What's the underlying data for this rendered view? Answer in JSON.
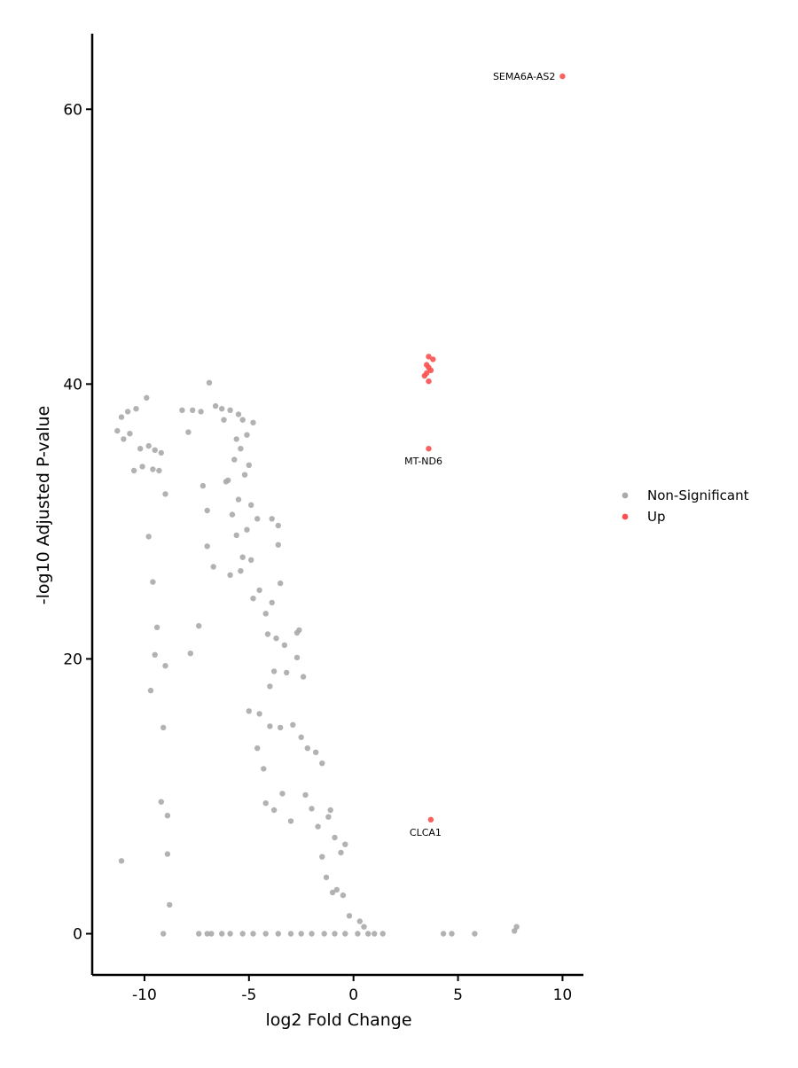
{
  "chart_data": {
    "type": "scatter",
    "title": "",
    "xlabel": "log2 Fold Change",
    "ylabel": "-log10 Adjusted P-value",
    "xlim": [
      -12.5,
      11
    ],
    "ylim": [
      -3,
      65.5
    ],
    "xticks": [
      -10,
      -5,
      0,
      5,
      10
    ],
    "yticks": [
      0,
      20,
      40,
      60
    ],
    "grid": false,
    "legend_position": "right",
    "colors": {
      "Non-Significant": "#aaaaaa",
      "Up": "#f8514f"
    },
    "series": [
      {
        "name": "Non-Significant",
        "points_description": "approx. 3000 genes, log2FC between -11.5 and 8, -log10 adj p between 0 and 40",
        "points": [
          [
            -11.3,
            36.6
          ],
          [
            -11.1,
            37.6
          ],
          [
            -11.0,
            36.0
          ],
          [
            -10.8,
            38.0
          ],
          [
            -10.7,
            36.4
          ],
          [
            -10.5,
            33.7
          ],
          [
            -10.4,
            38.2
          ],
          [
            -10.2,
            35.3
          ],
          [
            -10.1,
            34.0
          ],
          [
            -9.9,
            39.0
          ],
          [
            -9.8,
            35.5
          ],
          [
            -9.6,
            33.8
          ],
          [
            -9.5,
            35.2
          ],
          [
            -9.3,
            33.7
          ],
          [
            -9.2,
            35.0
          ],
          [
            -9.0,
            32.0
          ],
          [
            -9.8,
            28.9
          ],
          [
            -9.6,
            25.6
          ],
          [
            -9.4,
            22.3
          ],
          [
            -9.5,
            20.3
          ],
          [
            -9.7,
            17.7
          ],
          [
            -9.0,
            19.5
          ],
          [
            -9.1,
            15.0
          ],
          [
            -9.2,
            9.6
          ],
          [
            -8.9,
            8.6
          ],
          [
            -8.9,
            5.8
          ],
          [
            -8.8,
            2.1
          ],
          [
            -11.1,
            5.3
          ],
          [
            -9.1,
            0.0
          ],
          [
            -8.2,
            38.1
          ],
          [
            -7.9,
            36.5
          ],
          [
            -7.7,
            38.1
          ],
          [
            -7.3,
            38.0
          ],
          [
            -6.9,
            40.1
          ],
          [
            -6.6,
            38.4
          ],
          [
            -6.3,
            38.2
          ],
          [
            -6.2,
            37.4
          ],
          [
            -5.9,
            38.1
          ],
          [
            -5.5,
            37.8
          ],
          [
            -5.3,
            37.4
          ],
          [
            -5.6,
            36.0
          ],
          [
            -5.4,
            35.3
          ],
          [
            -5.0,
            34.1
          ],
          [
            -5.1,
            36.3
          ],
          [
            -4.8,
            37.2
          ],
          [
            -5.7,
            34.5
          ],
          [
            -6.0,
            33.0
          ],
          [
            -5.2,
            33.4
          ],
          [
            -5.5,
            31.6
          ],
          [
            -4.9,
            31.2
          ],
          [
            -5.8,
            30.5
          ],
          [
            -5.1,
            29.4
          ],
          [
            -4.6,
            30.2
          ],
          [
            -5.6,
            29.0
          ],
          [
            -5.3,
            27.4
          ],
          [
            -4.9,
            27.2
          ],
          [
            -3.9,
            30.2
          ],
          [
            -3.6,
            29.7
          ],
          [
            -3.6,
            28.3
          ],
          [
            -4.5,
            25.0
          ],
          [
            -4.2,
            23.3
          ],
          [
            -3.9,
            24.1
          ],
          [
            -3.5,
            25.5
          ],
          [
            -4.8,
            24.4
          ],
          [
            -4.1,
            21.8
          ],
          [
            -3.7,
            21.5
          ],
          [
            -3.3,
            21.0
          ],
          [
            -2.7,
            21.9
          ],
          [
            -2.7,
            20.1
          ],
          [
            -2.6,
            22.1
          ],
          [
            -4.0,
            18.0
          ],
          [
            -3.8,
            19.1
          ],
          [
            -3.2,
            19.0
          ],
          [
            -2.4,
            18.7
          ],
          [
            -5.0,
            16.2
          ],
          [
            -4.5,
            16.0
          ],
          [
            -4.0,
            15.1
          ],
          [
            -3.5,
            15.0
          ],
          [
            -2.9,
            15.2
          ],
          [
            -2.5,
            14.3
          ],
          [
            -2.2,
            13.5
          ],
          [
            -1.8,
            13.2
          ],
          [
            -1.5,
            12.4
          ],
          [
            -1.1,
            9.0
          ],
          [
            -1.2,
            8.5
          ],
          [
            -0.9,
            7.0
          ],
          [
            -0.4,
            6.5
          ],
          [
            -0.6,
            5.9
          ],
          [
            -0.8,
            3.2
          ],
          [
            -4.6,
            13.5
          ],
          [
            -4.3,
            12.0
          ],
          [
            -4.2,
            9.5
          ],
          [
            -3.8,
            9.0
          ],
          [
            -3.4,
            10.2
          ],
          [
            -3.0,
            8.2
          ],
          [
            -2.3,
            10.1
          ],
          [
            -2.0,
            9.1
          ],
          [
            -1.7,
            7.8
          ],
          [
            -1.5,
            5.6
          ],
          [
            -1.3,
            4.1
          ],
          [
            -1.0,
            3.0
          ],
          [
            -0.5,
            2.8
          ],
          [
            -0.2,
            1.3
          ],
          [
            0.3,
            0.9
          ],
          [
            0.5,
            0.5
          ],
          [
            1.4,
            0.0
          ],
          [
            1.0,
            0.0
          ],
          [
            4.3,
            0.0
          ],
          [
            4.7,
            0.0
          ],
          [
            5.8,
            0.0
          ],
          [
            7.7,
            0.2
          ],
          [
            7.8,
            0.5
          ],
          [
            -6.7,
            26.7
          ],
          [
            -7.0,
            28.2
          ],
          [
            -7.0,
            30.8
          ],
          [
            -7.2,
            32.6
          ],
          [
            -5.9,
            26.1
          ],
          [
            -5.4,
            26.4
          ],
          [
            -6.1,
            32.9
          ],
          [
            -7.4,
            22.4
          ],
          [
            -7.8,
            20.4
          ],
          [
            -7.4,
            0.0
          ],
          [
            -7.0,
            0.0
          ],
          [
            -6.8,
            0.0
          ],
          [
            -6.3,
            0.0
          ],
          [
            -5.9,
            0.0
          ],
          [
            -5.3,
            0.0
          ],
          [
            -4.8,
            0.0
          ],
          [
            -4.2,
            0.0
          ],
          [
            -3.6,
            0.0
          ],
          [
            -3.0,
            0.0
          ],
          [
            -2.5,
            0.0
          ],
          [
            -2.0,
            0.0
          ],
          [
            -1.4,
            0.0
          ],
          [
            -0.9,
            0.0
          ],
          [
            -0.4,
            0.0
          ],
          [
            0.2,
            0.0
          ],
          [
            0.7,
            0.0
          ]
        ]
      },
      {
        "name": "Up",
        "points": [
          [
            10.0,
            62.4
          ],
          [
            3.6,
            42.0
          ],
          [
            3.8,
            41.8
          ],
          [
            3.5,
            41.4
          ],
          [
            3.6,
            41.2
          ],
          [
            3.7,
            41.0
          ],
          [
            3.5,
            40.8
          ],
          [
            3.4,
            40.6
          ],
          [
            3.6,
            40.2
          ],
          [
            3.6,
            35.3
          ],
          [
            3.7,
            8.3
          ]
        ]
      }
    ],
    "annotations": [
      {
        "text": "SEMA6A-AS2",
        "x": 10.0,
        "y": 62.4
      },
      {
        "text": "MT-ND6",
        "x": 3.6,
        "y": 35.3
      },
      {
        "text": "CLCA1",
        "x": 3.7,
        "y": 8.3
      }
    ]
  }
}
